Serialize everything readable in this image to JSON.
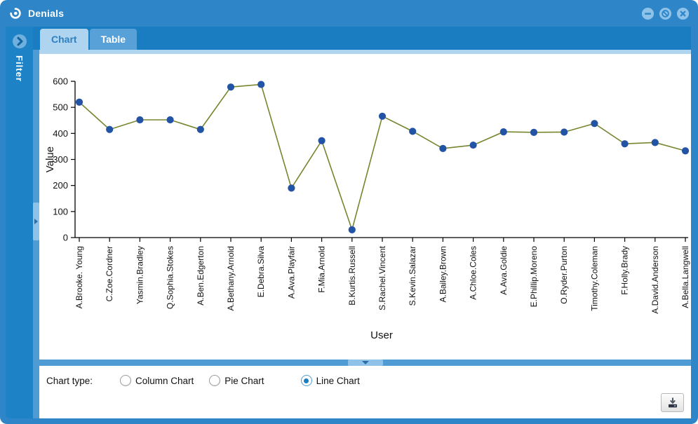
{
  "window": {
    "title": "Denials",
    "controls": [
      {
        "name": "minimize",
        "icon": "minus-circle-icon"
      },
      {
        "name": "maximize",
        "icon": "slashed-circle-icon"
      },
      {
        "name": "close",
        "icon": "x-circle-icon"
      }
    ],
    "app_icon": "swirl-circle-icon"
  },
  "sidebar": {
    "label": "Filter",
    "toggle_icon": "chevron-right-circle-icon",
    "expand_handle_icon": "chevron-right-icon"
  },
  "tabs": [
    {
      "label": "Chart",
      "active": true
    },
    {
      "label": "Table",
      "active": false
    }
  ],
  "chart_data": {
    "type": "line",
    "title": "",
    "xlabel": "User",
    "ylabel": "Value",
    "ylim": [
      0,
      600
    ],
    "ytick_interval": 100,
    "grid": false,
    "legend": "none",
    "categories": [
      "A.Brooke. Young",
      "C.Zoe.Cordner",
      "Yasmin.Bradley",
      "Q.Sophia.Stokes",
      "A.Ben.Edgerton",
      "A.Bethany.Arnold",
      "E.Debra.Silva",
      "A.Ava.Playfair",
      "F.Mia.Arnold",
      "B.Kurtis.Russell",
      "S.Rachel.Vincent",
      "S.Kevin.Salazar",
      "A.Bailey.Brown",
      "A.Chloe.Coles",
      "A.Ava.Goldie",
      "E.Phillip.Moreno",
      "O.Ryder.Purton",
      "Timothy.Coleman",
      "F.Holly.Brady",
      "A.David.Anderson",
      "A.Bella.Langwell"
    ],
    "values": [
      520,
      415,
      452,
      452,
      415,
      578,
      588,
      190,
      372,
      30,
      466,
      408,
      342,
      355,
      406,
      404,
      405,
      438,
      360,
      365,
      333
    ],
    "line_color": "#76862e",
    "marker_color": "#2353a5"
  },
  "chart_type_bar": {
    "label": "Chart type:",
    "options": [
      {
        "label": "Column Chart",
        "selected": false
      },
      {
        "label": "Pie Chart",
        "selected": false
      },
      {
        "label": "Line Chart",
        "selected": true
      }
    ]
  },
  "toolbar": {
    "download_icon": "download-icon"
  },
  "colors": {
    "titlebar": "#2e86c8",
    "tabstrip": "#1a7dc2",
    "active_tab_bg": "#aed4f0",
    "active_tab_text": "#2f7fc1",
    "inactive_tab_bg": "#57a1d8",
    "sidebar": "#1e82c6",
    "splitter": "#4f9cd4",
    "splitter_handle": "#8ec2e8",
    "selected_radio": "#1a7dc2"
  }
}
